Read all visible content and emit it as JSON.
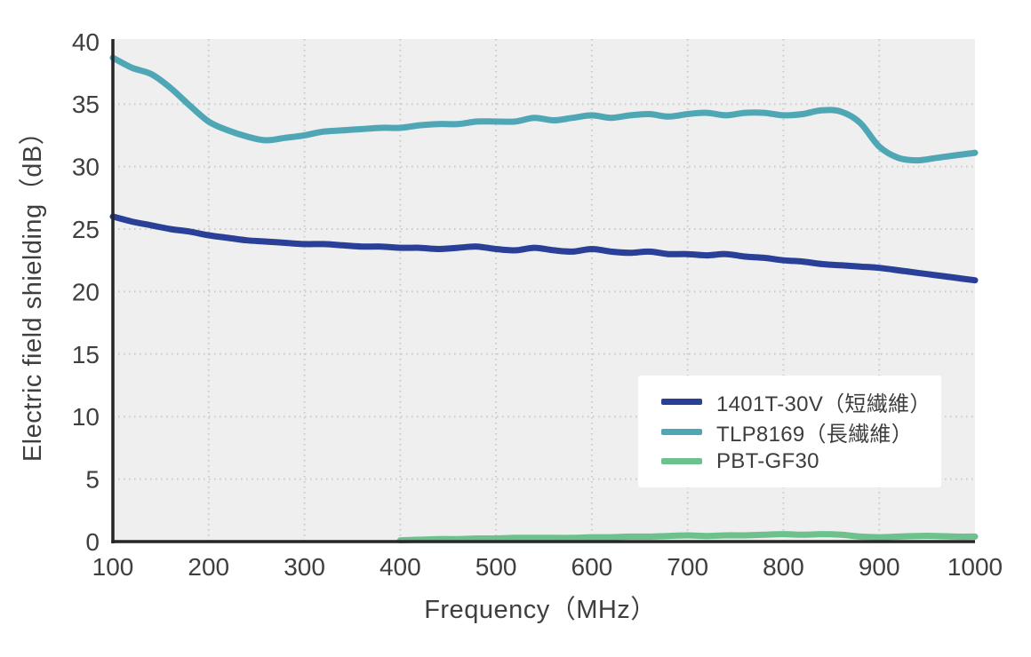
{
  "figure": {
    "background": "#ffffff",
    "plot_background": "#efefef",
    "grid_color": "#c9c9c9",
    "spine_color": "#262626",
    "tick_text_color": "#3f3f3f"
  },
  "chart_data": {
    "type": "line",
    "title": "",
    "xlabel": "Frequency（MHz）",
    "ylabel": "Electric field shielding（dB）",
    "xlim": [
      100,
      1000
    ],
    "ylim": [
      0,
      40.2
    ],
    "xticks": [
      100,
      200,
      300,
      400,
      500,
      600,
      700,
      800,
      900,
      1000
    ],
    "yticks": [
      0,
      5,
      10,
      15,
      20,
      25,
      30,
      35,
      40
    ],
    "grid": "dotted horizontal and vertical gridlines on light gray plot background",
    "legend_position": "lower right inside plot, white box",
    "series": [
      {
        "name": "1401T-30V（短繊維）",
        "color": "#2a3f97",
        "x": [
          100,
          120,
          140,
          160,
          180,
          200,
          220,
          240,
          260,
          280,
          300,
          320,
          340,
          360,
          380,
          400,
          420,
          440,
          460,
          480,
          500,
          520,
          540,
          560,
          580,
          600,
          620,
          640,
          660,
          680,
          700,
          720,
          740,
          760,
          780,
          800,
          820,
          840,
          860,
          880,
          900,
          920,
          940,
          960,
          980,
          1000
        ],
        "y": [
          26.0,
          25.6,
          25.3,
          25.0,
          24.8,
          24.5,
          24.3,
          24.1,
          24.0,
          23.9,
          23.8,
          23.8,
          23.7,
          23.6,
          23.6,
          23.5,
          23.5,
          23.4,
          23.5,
          23.6,
          23.4,
          23.3,
          23.5,
          23.3,
          23.2,
          23.4,
          23.2,
          23.1,
          23.2,
          23.0,
          23.0,
          22.9,
          23.0,
          22.8,
          22.7,
          22.5,
          22.4,
          22.2,
          22.1,
          22.0,
          21.9,
          21.7,
          21.5,
          21.3,
          21.1,
          20.9
        ]
      },
      {
        "name": "TLP8169（長繊維）",
        "color": "#4fa7b6",
        "x": [
          100,
          120,
          140,
          160,
          180,
          200,
          220,
          240,
          260,
          280,
          300,
          320,
          340,
          360,
          380,
          400,
          420,
          440,
          460,
          480,
          500,
          520,
          540,
          560,
          580,
          600,
          620,
          640,
          660,
          680,
          700,
          720,
          740,
          760,
          780,
          800,
          820,
          840,
          860,
          880,
          900,
          920,
          940,
          960,
          980,
          1000
        ],
        "y": [
          38.7,
          37.9,
          37.4,
          36.3,
          34.9,
          33.6,
          32.9,
          32.4,
          32.1,
          32.3,
          32.5,
          32.8,
          32.9,
          33.0,
          33.1,
          33.1,
          33.3,
          33.4,
          33.4,
          33.6,
          33.6,
          33.6,
          33.9,
          33.7,
          33.9,
          34.1,
          33.9,
          34.1,
          34.2,
          34.0,
          34.2,
          34.3,
          34.1,
          34.3,
          34.3,
          34.1,
          34.2,
          34.5,
          34.4,
          33.5,
          31.6,
          30.7,
          30.5,
          30.7,
          30.9,
          31.1
        ]
      },
      {
        "name": "PBT-GF30",
        "color": "#6dc18c",
        "x": [
          400,
          420,
          440,
          460,
          480,
          500,
          520,
          540,
          560,
          580,
          600,
          620,
          640,
          660,
          680,
          700,
          720,
          740,
          760,
          780,
          800,
          820,
          840,
          860,
          880,
          900,
          920,
          940,
          960,
          980,
          1000
        ],
        "y": [
          0.1,
          0.15,
          0.2,
          0.2,
          0.25,
          0.25,
          0.3,
          0.3,
          0.3,
          0.3,
          0.35,
          0.35,
          0.4,
          0.4,
          0.45,
          0.5,
          0.45,
          0.5,
          0.5,
          0.55,
          0.6,
          0.55,
          0.6,
          0.55,
          0.4,
          0.35,
          0.4,
          0.45,
          0.45,
          0.4,
          0.4
        ]
      }
    ]
  }
}
